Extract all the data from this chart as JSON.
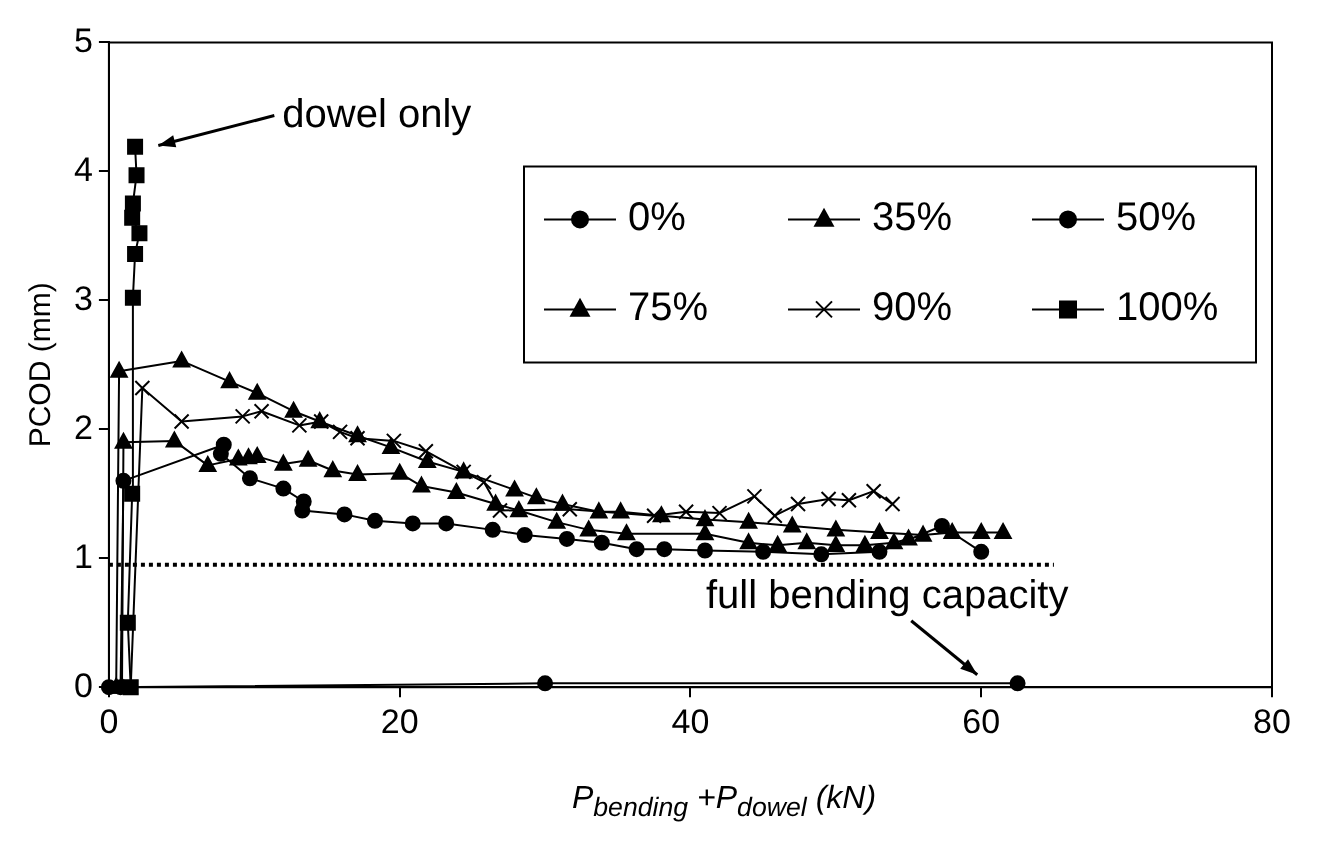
{
  "chart_data": {
    "type": "line",
    "xlabel": "P$_{bending}$ +P$_{dowel}$ (kN)",
    "ylabel": "PCOD (mm)",
    "xlim": [
      0,
      80
    ],
    "xticks": [
      0,
      20,
      40,
      60,
      80
    ],
    "ylim": [
      0,
      5
    ],
    "yticks": [
      0,
      1,
      2,
      3,
      4,
      5
    ],
    "grid": false,
    "legend": "top right",
    "annotations": [
      {
        "text": "dowel only",
        "x": 2.3,
        "y": 4.2
      },
      {
        "text": "full bending capacity",
        "x": 60,
        "y": 0.05
      }
    ],
    "series": [
      {
        "name": "0%",
        "color": "#000000",
        "marker": "circle",
        "x": [
          0,
          30,
          62.5
        ],
        "values": [
          0,
          0.03,
          0.03
        ]
      },
      {
        "name": "35%",
        "color": "#000000",
        "marker": "triangle",
        "x": [
          0.5,
          0.7,
          5,
          8.3,
          10.2,
          12.7,
          14.5,
          17.1,
          19.4,
          21.9,
          24.4,
          27.9,
          29.4,
          31.2,
          33.7,
          35.2,
          38,
          41,
          44,
          47,
          50,
          53,
          56,
          58,
          60,
          61.5
        ],
        "values": [
          0,
          2.45,
          2.53,
          2.37,
          2.28,
          2.14,
          2.06,
          1.95,
          1.86,
          1.75,
          1.67,
          1.53,
          1.47,
          1.42,
          1.36,
          1.36,
          1.33,
          1.3,
          1.28,
          1.25,
          1.22,
          1.2,
          1.18,
          1.2,
          1.2,
          1.2
        ]
      },
      {
        "name": "50%",
        "color": "#000000",
        "marker": "circle",
        "x": [
          0.8,
          1,
          7.9,
          7.7,
          9.7,
          12,
          13.4,
          13.3,
          16.2,
          18.3,
          20.9,
          23.2,
          26.4,
          28.6,
          31.5,
          33.9,
          36.3,
          38.2,
          41,
          45,
          49,
          53,
          57.3,
          60
        ],
        "values": [
          0,
          1.6,
          1.88,
          1.81,
          1.62,
          1.54,
          1.44,
          1.37,
          1.34,
          1.29,
          1.27,
          1.27,
          1.22,
          1.18,
          1.15,
          1.12,
          1.07,
          1.07,
          1.06,
          1.05,
          1.03,
          1.05,
          1.25,
          1.05
        ]
      },
      {
        "name": "75%",
        "color": "#000000",
        "marker": "triangle",
        "x": [
          0.9,
          1,
          4.5,
          6.8,
          8.9,
          9.6,
          10.2,
          12,
          13.7,
          15.4,
          17.1,
          20,
          21.5,
          23.9,
          26.6,
          28.2,
          30.8,
          33,
          35.6,
          41,
          44,
          46,
          48,
          50,
          52,
          54,
          55
        ],
        "values": [
          0,
          1.9,
          1.91,
          1.72,
          1.77,
          1.78,
          1.79,
          1.73,
          1.76,
          1.68,
          1.65,
          1.66,
          1.56,
          1.51,
          1.42,
          1.37,
          1.28,
          1.22,
          1.19,
          1.19,
          1.12,
          1.1,
          1.12,
          1.1,
          1.1,
          1.12,
          1.15
        ]
      },
      {
        "name": "90%",
        "color": "#000000",
        "marker": "cross",
        "x": [
          1.5,
          2.3,
          5,
          9.2,
          10.5,
          13.1,
          14.6,
          15.9,
          17.1,
          19.6,
          21.8,
          24.4,
          25.8,
          26.9,
          31.7,
          37.5,
          39.7,
          42,
          44.4,
          45.8,
          47.4,
          49.5,
          50.9,
          52.6,
          53.9
        ],
        "values": [
          0,
          2.32,
          2.06,
          2.1,
          2.14,
          2.03,
          2.06,
          1.98,
          1.93,
          1.91,
          1.83,
          1.67,
          1.59,
          1.37,
          1.38,
          1.33,
          1.36,
          1.35,
          1.48,
          1.33,
          1.42,
          1.46,
          1.45,
          1.52,
          1.42
        ]
      },
      {
        "name": "100%",
        "color": "#000000",
        "marker": "square",
        "x": [
          1.5,
          1.3,
          1.6,
          1.65,
          1.8,
          2.1,
          1.6,
          1.65,
          1.9,
          1.8
        ],
        "values": [
          0,
          0.5,
          1.5,
          3.02,
          3.36,
          3.52,
          3.64,
          3.75,
          3.97,
          4.19
        ]
      },
      {
        "color": "#000000",
        "marker": "none",
        "line_style": "dotted",
        "x": [
          0,
          65
        ],
        "values": [
          0.95,
          0.95
        ]
      }
    ]
  }
}
